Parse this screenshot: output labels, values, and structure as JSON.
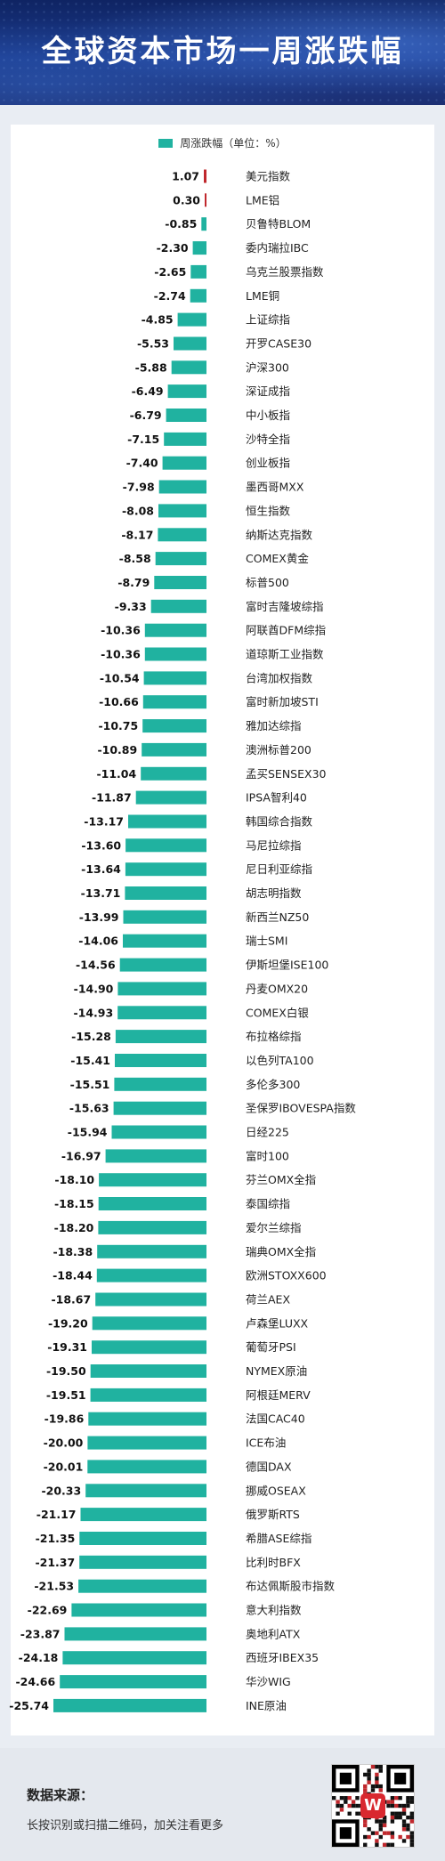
{
  "header": {
    "title": "全球资本市场一周涨跌幅"
  },
  "legend": {
    "label": "周涨跌幅（单位：%）"
  },
  "colors": {
    "negative": "#20b2a0",
    "positive": "#c0282d",
    "header_bg": "#14307a"
  },
  "chart_data": {
    "type": "bar",
    "orientation": "horizontal",
    "categories": [
      "美元指数",
      "LME铝",
      "贝鲁特BLOM",
      "委内瑞拉IBC",
      "乌克兰股票指数",
      "LME铜",
      "上证综指",
      "开罗CASE30",
      "沪深300",
      "深证成指",
      "中小板指",
      "沙特全指",
      "创业板指",
      "墨西哥MXX",
      "恒生指数",
      "纳斯达克指数",
      "COMEX黄金",
      "标普500",
      "富时吉隆坡综指",
      "阿联酋DFM综指",
      "道琼斯工业指数",
      "台湾加权指数",
      "富时新加坡STI",
      "雅加达综指",
      "澳洲标普200",
      "孟买SENSEX30",
      "IPSA智利40",
      "韩国综合指数",
      "马尼拉综指",
      "尼日利亚综指",
      "胡志明指数",
      "新西兰NZ50",
      "瑞士SMI",
      "伊斯坦堡ISE100",
      "丹麦OMX20",
      "COMEX白银",
      "布拉格综指",
      "以色列TA100",
      "多伦多300",
      "圣保罗IBOVESPA指数",
      "日经225",
      "富时100",
      "芬兰OMX全指",
      "泰国综指",
      "爱尔兰综指",
      "瑞典OMX全指",
      "欧洲STOXX600",
      "荷兰AEX",
      "卢森堡LUXX",
      "葡萄牙PSI",
      "NYMEX原油",
      "阿根廷MERV",
      "法国CAC40",
      "ICE布油",
      "德国DAX",
      "挪威OSEAX",
      "俄罗斯RTS",
      "希腊ASE综指",
      "比利时BFX",
      "布达佩斯股市指数",
      "意大利指数",
      "奥地利ATX",
      "西班牙IBEX35",
      "华沙WIG",
      "INE原油"
    ],
    "labels": [
      "1.07",
      "0.30",
      "-0.85",
      "-2.30",
      "-2.65",
      "-2.74",
      "-4.85",
      "-5.53",
      "-5.88",
      "-6.49",
      "-6.79",
      "-7.15",
      "-7.40",
      "-7.98",
      "-8.08",
      "-8.17",
      "-8.58",
      "-8.79",
      "-9.33",
      "-10.36",
      "-10.36",
      "-10.54",
      "-10.66",
      "-10.75",
      "-10.89",
      "-11.04",
      "-11.87",
      "-13.17",
      "-13.60",
      "-13.64",
      "-13.71",
      "-13.99",
      "-14.06",
      "-14.56",
      "-14.90",
      "-14.93",
      "-15.28",
      "-15.41",
      "-15.51",
      "-15.63",
      "-15.94",
      "-16.97",
      "-18.10",
      "-18.15",
      "-18.20",
      "-18.38",
      "-18.44",
      "-18.67",
      "-19.20",
      "-19.31",
      "-19.50",
      "-19.51",
      "-19.86",
      "-20.00",
      "-20.01",
      "-20.33",
      "-21.17",
      "-21.35",
      "-21.37",
      "-21.53",
      "-22.69",
      "-23.87",
      "-24.18",
      "-24.66",
      "-25.74"
    ],
    "values": [
      1.07,
      0.3,
      -0.85,
      -2.3,
      -2.65,
      -2.74,
      -4.85,
      -5.53,
      -5.88,
      -6.49,
      -6.79,
      -7.15,
      -7.4,
      -7.98,
      -8.08,
      -8.17,
      -8.58,
      -8.79,
      -9.33,
      -10.36,
      -10.36,
      -10.54,
      -10.66,
      -10.75,
      -10.89,
      -11.04,
      -11.87,
      -13.17,
      -13.6,
      -13.64,
      -13.71,
      -13.99,
      -14.06,
      -14.56,
      -14.9,
      -14.93,
      -15.28,
      -15.41,
      -15.51,
      -15.63,
      -15.94,
      -16.97,
      -18.1,
      -18.15,
      -18.2,
      -18.38,
      -18.44,
      -18.67,
      -19.2,
      -19.31,
      -19.5,
      -19.51,
      -19.86,
      -20.0,
      -20.01,
      -20.33,
      -21.17,
      -21.35,
      -21.37,
      -21.53,
      -22.69,
      -23.87,
      -24.18,
      -24.66,
      -25.74
    ],
    "xlim": [
      -25.74,
      0
    ]
  },
  "footer": {
    "source_label": "数据来源：",
    "source_text": "长按识别或扫描二维码，加关注看更多",
    "qr_logo": "W"
  }
}
